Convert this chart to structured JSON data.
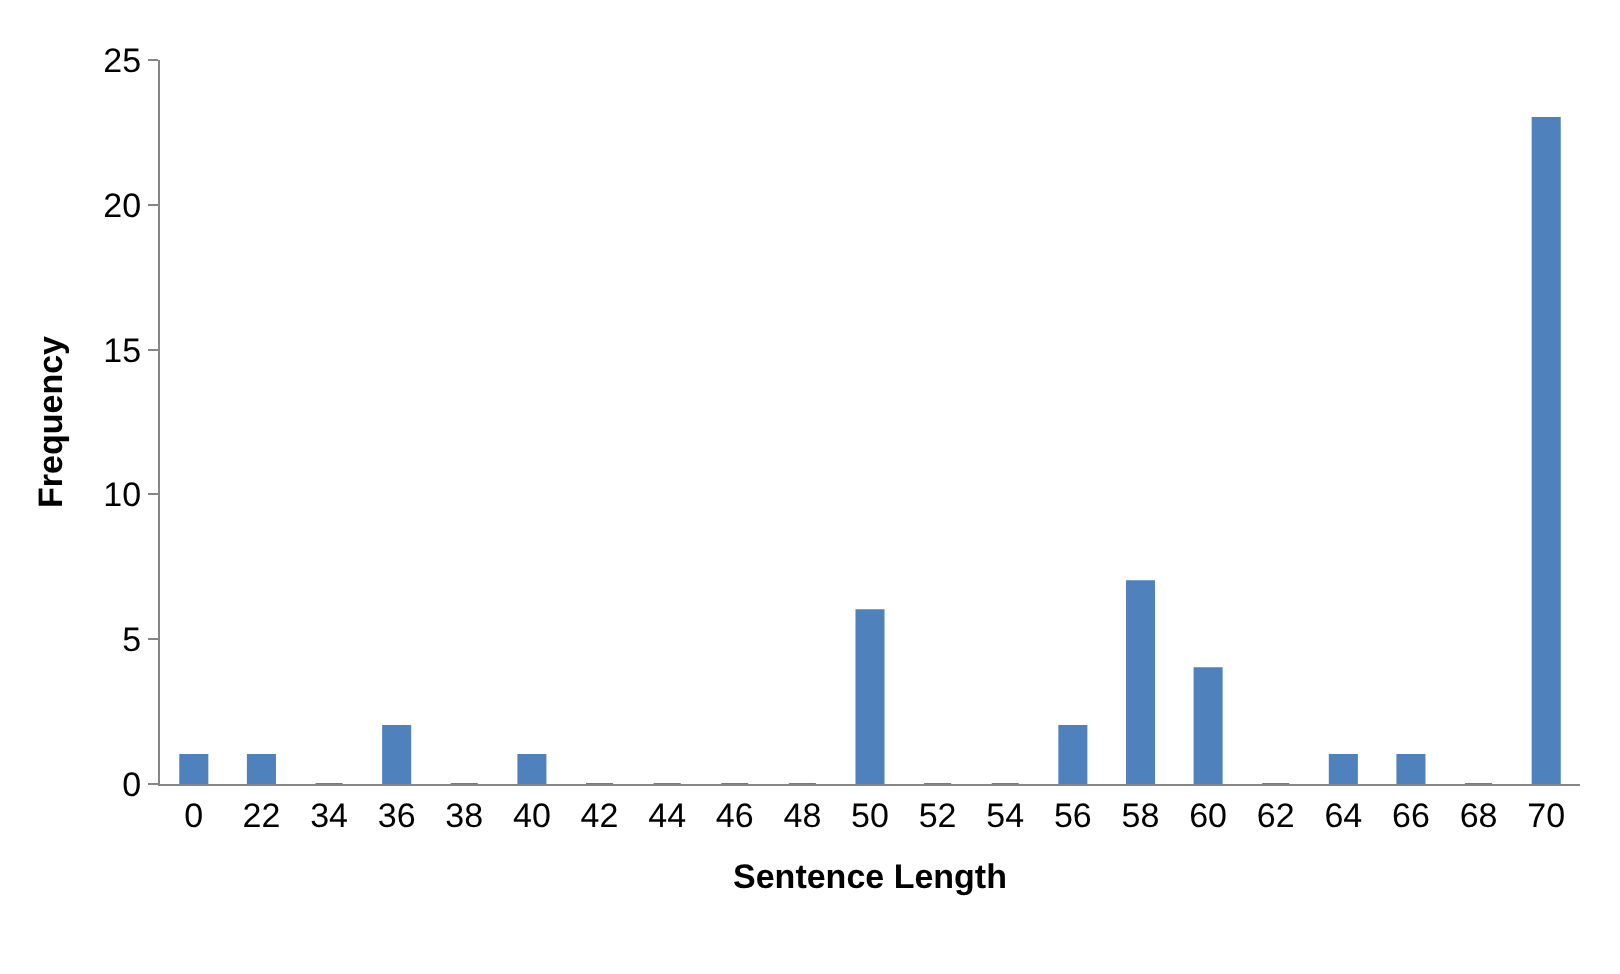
{
  "chart_data": {
    "type": "bar",
    "xlabel": "Sentence Length",
    "ylabel": "Frequency",
    "categories": [
      "0",
      "22",
      "34",
      "36",
      "38",
      "40",
      "42",
      "44",
      "46",
      "48",
      "50",
      "52",
      "54",
      "56",
      "58",
      "60",
      "62",
      "64",
      "66",
      "68",
      "70"
    ],
    "values": [
      1,
      1,
      0,
      2,
      0,
      1,
      0,
      0,
      0,
      0,
      6,
      0,
      0,
      2,
      7,
      4,
      0,
      1,
      1,
      0,
      23
    ],
    "color": "#4f81bd",
    "ylim": [
      0,
      25
    ],
    "yticks": [
      0,
      5,
      10,
      15,
      20,
      25
    ],
    "grid": false,
    "legend": false
  }
}
